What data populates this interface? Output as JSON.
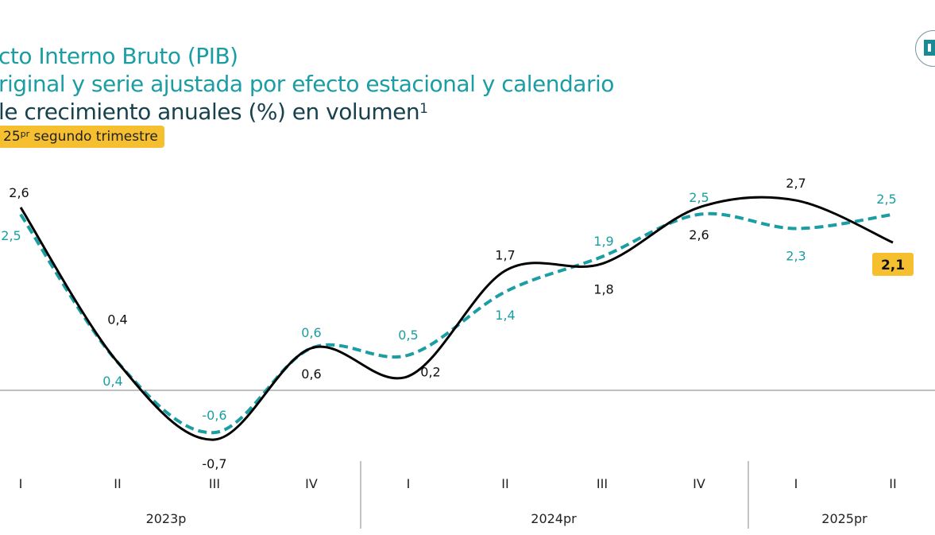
{
  "header": {
    "title_line1": "cto Interno Bruto (PIB)",
    "title_line2": "riginal y serie ajustada por efecto estacional y calendario",
    "title_line3": "le crecimiento anuales (%) en volumen",
    "title_line3_sup": "1",
    "badge_main": "25",
    "badge_sup": "pr",
    "badge_rest": " segundo trimestre"
  },
  "chart_data": {
    "type": "line",
    "categories": [
      "I",
      "II",
      "III",
      "IV",
      "I",
      "II",
      "III",
      "IV",
      "I",
      "II"
    ],
    "year_groups": [
      {
        "label": "2023p",
        "quarters": 4
      },
      {
        "label": "2024pr",
        "quarters": 4
      },
      {
        "label": "2025pr",
        "quarters": 2
      }
    ],
    "series": [
      {
        "style": "solid",
        "color": "#000000",
        "values": [
          2.6,
          0.4,
          -0.7,
          0.6,
          0.2,
          1.7,
          1.8,
          2.6,
          2.7,
          2.1
        ],
        "labels": [
          "2,6",
          "0,4",
          "-0,7",
          "0,6",
          "0,2",
          "1,7",
          "1,8",
          "2,6",
          "2,7",
          "2,1"
        ]
      },
      {
        "style": "dashed",
        "color": "#1a9ea3",
        "values": [
          2.5,
          0.4,
          -0.6,
          0.6,
          0.5,
          1.4,
          1.9,
          2.5,
          2.3,
          2.5
        ],
        "labels": [
          "2,5",
          "0,4",
          "-0,6",
          "0,6",
          "0,5",
          "1,4",
          "1,9",
          "2,5",
          "2,3",
          "2,5"
        ]
      }
    ],
    "highlight": {
      "series": 0,
      "index": 9,
      "color": "#f6bf2f"
    },
    "zero_line": true,
    "grid": false
  }
}
